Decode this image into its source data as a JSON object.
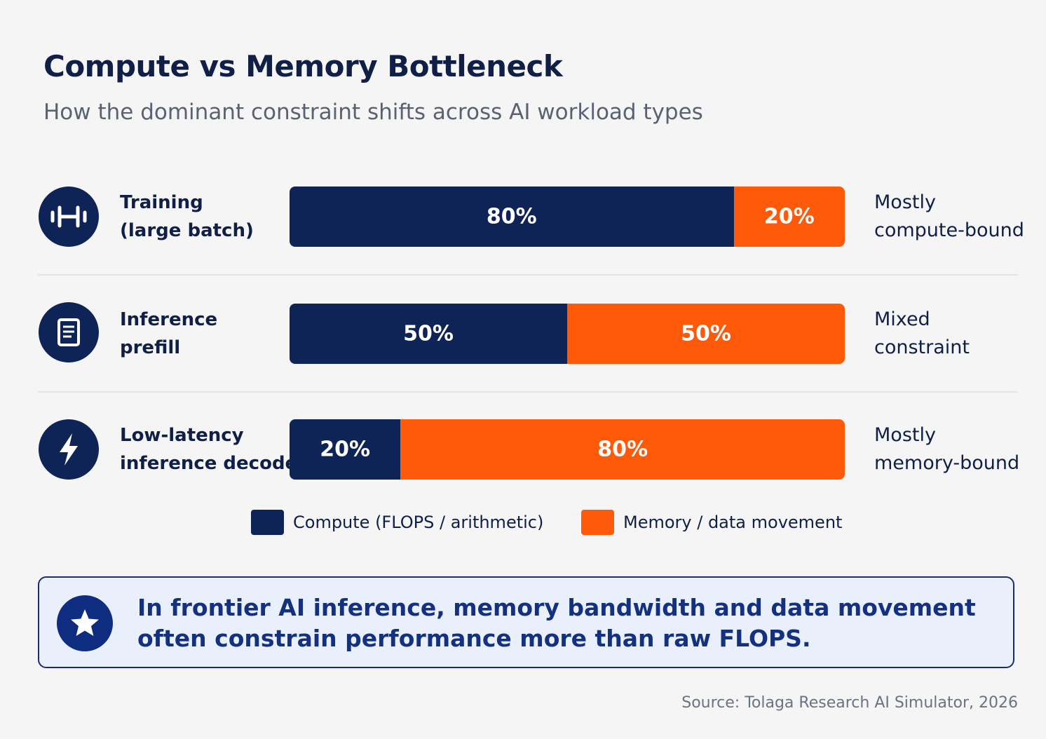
{
  "chart_data": {
    "type": "stacked-bar",
    "title": "Compute vs Memory Bottleneck",
    "subtitle": "How the dominant constraint shifts across AI workload types",
    "categories": [
      "Training\n(large batch)",
      "Inference\nprefill",
      "Low-latency\ninference decode"
    ],
    "annotations": [
      "Mostly\ncompute-bound",
      "Mixed\nconstraint",
      "Mostly\nmemory-bound"
    ],
    "xlim": [
      0,
      100
    ],
    "series": [
      {
        "name": "Compute (FLOPS / arithmetic)",
        "color": "#0f2456",
        "values": [
          80,
          50,
          20
        ],
        "value_labels": [
          "80%",
          "50%",
          "20%"
        ]
      },
      {
        "name": "Memory / data movement",
        "color": "#ff5a0a",
        "values": [
          20,
          50,
          80
        ],
        "value_labels": [
          "20%",
          "50%",
          "80%"
        ]
      }
    ],
    "callout": "In frontier AI inference, memory bandwidth and data movement\noften constrain performance more than raw FLOPS.",
    "source": "Source: Tolaga Research AI Simulator, 2026"
  }
}
